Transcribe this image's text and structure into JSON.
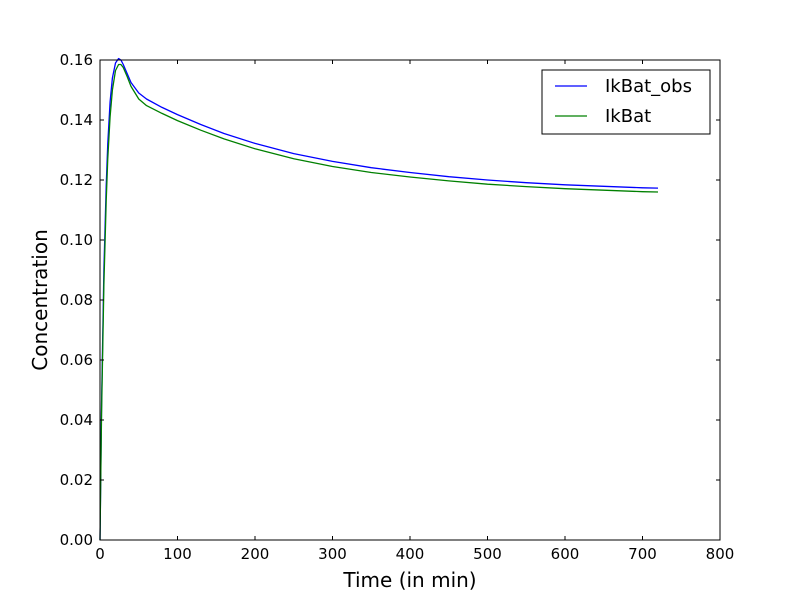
{
  "chart_data": {
    "type": "line",
    "title": "",
    "xlabel": "Time (in min)",
    "ylabel": "Concentration",
    "xlim": [
      0,
      800
    ],
    "ylim": [
      0,
      0.16
    ],
    "xticks": [
      "0",
      "100",
      "200",
      "300",
      "400",
      "500",
      "600",
      "700",
      "800"
    ],
    "yticks": [
      "0.00",
      "0.02",
      "0.04",
      "0.06",
      "0.08",
      "0.10",
      "0.12",
      "0.14",
      "0.16"
    ],
    "grid": false,
    "legend_position": "top-right",
    "series": [
      {
        "name": "IkBat_obs",
        "color": "#0000ff",
        "x": [
          0,
          2,
          5,
          8,
          10,
          13,
          16,
          20,
          24,
          27,
          30,
          35,
          40,
          50,
          60,
          80,
          100,
          130,
          160,
          200,
          250,
          300,
          350,
          400,
          450,
          500,
          550,
          600,
          650,
          700,
          720
        ],
        "y": [
          0.0,
          0.045,
          0.09,
          0.118,
          0.132,
          0.146,
          0.154,
          0.159,
          0.1605,
          0.16,
          0.1585,
          0.1555,
          0.1525,
          0.149,
          0.147,
          0.1442,
          0.1418,
          0.1385,
          0.1355,
          0.1322,
          0.1288,
          0.1262,
          0.1241,
          0.1225,
          0.1211,
          0.12,
          0.1191,
          0.1184,
          0.1179,
          0.1174,
          0.1173
        ]
      },
      {
        "name": "IkBat",
        "color": "#008000",
        "x": [
          0,
          2,
          5,
          8,
          10,
          13,
          16,
          20,
          24,
          27,
          30,
          35,
          40,
          50,
          60,
          80,
          100,
          130,
          160,
          200,
          250,
          300,
          350,
          400,
          450,
          500,
          550,
          600,
          650,
          700,
          720
        ],
        "y": [
          0.0,
          0.042,
          0.085,
          0.113,
          0.127,
          0.141,
          0.15,
          0.1565,
          0.1585,
          0.1585,
          0.1575,
          0.1545,
          0.1512,
          0.147,
          0.1448,
          0.1422,
          0.1398,
          0.1366,
          0.1337,
          0.1304,
          0.1271,
          0.1245,
          0.1225,
          0.121,
          0.1197,
          0.1186,
          0.1178,
          0.1171,
          0.1166,
          0.1161,
          0.116
        ]
      }
    ]
  }
}
